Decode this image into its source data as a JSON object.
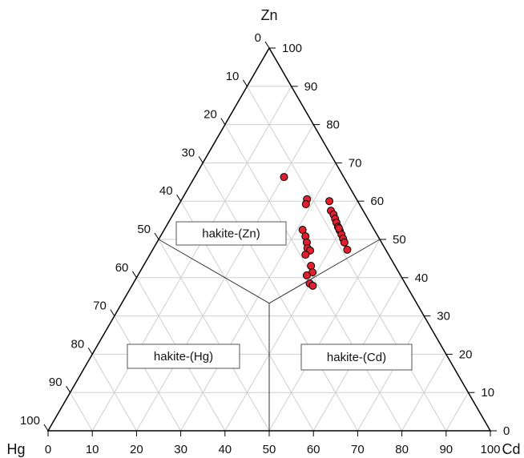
{
  "chart_data": {
    "type": "ternary",
    "axes": [
      {
        "label": "Zn",
        "ticks": [
          0,
          10,
          20,
          30,
          40,
          50,
          60,
          70,
          80,
          90,
          100
        ]
      },
      {
        "label": "Hg",
        "ticks": [
          0,
          10,
          20,
          30,
          40,
          50,
          60,
          70,
          80,
          90,
          100
        ]
      },
      {
        "label": "Cd",
        "ticks": [
          0,
          10,
          20,
          30,
          40,
          50,
          60,
          70,
          80,
          90,
          100
        ]
      }
    ],
    "grid": true,
    "regions": [
      {
        "label": "hakite-(Zn)"
      },
      {
        "label": "hakite-(Hg)"
      },
      {
        "label": "hakite-(Cd)"
      }
    ],
    "series": [
      {
        "color": "#e0202c",
        "zn": [
          66.3,
          60.5,
          59.2,
          60.0,
          57.5,
          56.5,
          55.4,
          54.4,
          53.3,
          52.3,
          51.3,
          50.2,
          49.2,
          47.3,
          52.9,
          52.5,
          50.8,
          49.2,
          47.7,
          47.1,
          46.0,
          43.1,
          41.4,
          40.6,
          38.5,
          37.9
        ],
        "cd": [
          20.2,
          28.3,
          28.7,
          33.6,
          35.2,
          36.3,
          37.2,
          38.0,
          38.9,
          39.8,
          40.7,
          41.6,
          42.4,
          44.0,
          39.3,
          31.3,
          32.8,
          33.9,
          34.8,
          35.7,
          35.2,
          37.9,
          39.1,
          38.2,
          39.9,
          40.9
        ]
      }
    ]
  }
}
